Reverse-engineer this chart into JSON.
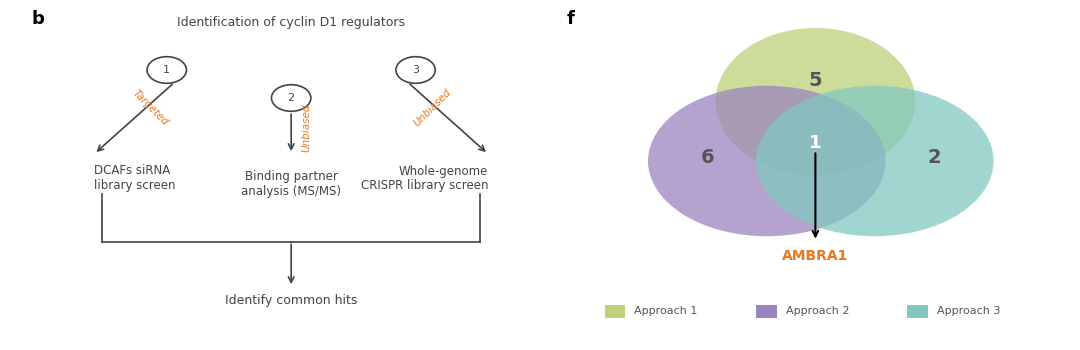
{
  "panel_b": {
    "title": "Identification of cyclin D1 regulators",
    "title_color": "#555555",
    "label_b": "b",
    "approach1_label": "1",
    "approach2_label": "2",
    "approach3_label": "3",
    "arrow1_text": "Targeted",
    "arrow2_text": "Unbiased",
    "arrow3_text": "Unbiased",
    "box1_text": "DCAFs siRNA\nlibrary screen",
    "box2_text": "Binding partner\nanalysis (MS/MS)",
    "box3_text": "Whole-genome\nCRISPR library screen",
    "bottom_text": "Identify common hits",
    "text_color": "#444444",
    "italic_color": "#E87722",
    "arrow_color": "#444444",
    "circle_color": "#444444"
  },
  "panel_f": {
    "label_f": "f",
    "circle1_color": "#bdd17a",
    "circle2_color": "#9b85bf",
    "circle3_color": "#82c8c0",
    "circle1_alpha": 0.75,
    "circle2_alpha": 0.75,
    "circle3_alpha": 0.75,
    "num_5": "5",
    "num_6": "6",
    "num_2": "2",
    "num_1": "1",
    "ambra1_label": "AMBRA1",
    "legend1": "Approach 1",
    "legend2": "Approach 2",
    "legend3": "Approach 3",
    "number_color": "#555555",
    "number_color_center": "#ffffff",
    "ambra1_color": "#E87722",
    "label_color": "#555555"
  }
}
